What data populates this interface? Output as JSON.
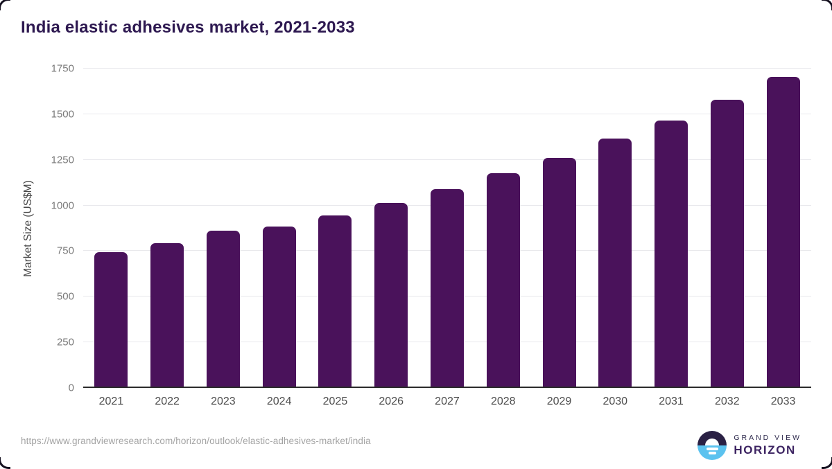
{
  "title": "India elastic adhesives market, 2021-2033",
  "source_url": "https://www.grandviewresearch.com/horizon/outlook/elastic-adhesives-market/india",
  "logo": {
    "brand_top": "GRAND VIEW",
    "brand_bottom": "HORIZON",
    "icon": "horizon-sun-icon"
  },
  "colors": {
    "bar": "#4a125b",
    "title_text": "#2d1850",
    "gridline": "#e8e8ec",
    "axis_line": "#2b2b2b",
    "ytick_label": "#7a7a7a",
    "xtick_label": "#4d4d4d",
    "axis_title": "#474747",
    "source_text": "#a3a3a3",
    "logo_dark_half": "#2a2044",
    "logo_blue_half": "#5bc2ef"
  },
  "chart_data": {
    "type": "bar",
    "title": "India elastic adhesives market, 2021-2033",
    "categories": [
      "2021",
      "2022",
      "2023",
      "2024",
      "2025",
      "2026",
      "2027",
      "2028",
      "2029",
      "2030",
      "2031",
      "2032",
      "2033"
    ],
    "values": [
      745,
      795,
      860,
      885,
      945,
      1015,
      1090,
      1175,
      1260,
      1365,
      1465,
      1580,
      1705
    ],
    "xlabel": "",
    "ylabel": "Market Size (US$M)",
    "ylim": [
      0,
      1750
    ],
    "yticks": [
      0,
      250,
      500,
      750,
      1000,
      1250,
      1500,
      1750
    ],
    "grid": "horizontal-only",
    "legend": false,
    "bar_color": "#4a125b"
  }
}
